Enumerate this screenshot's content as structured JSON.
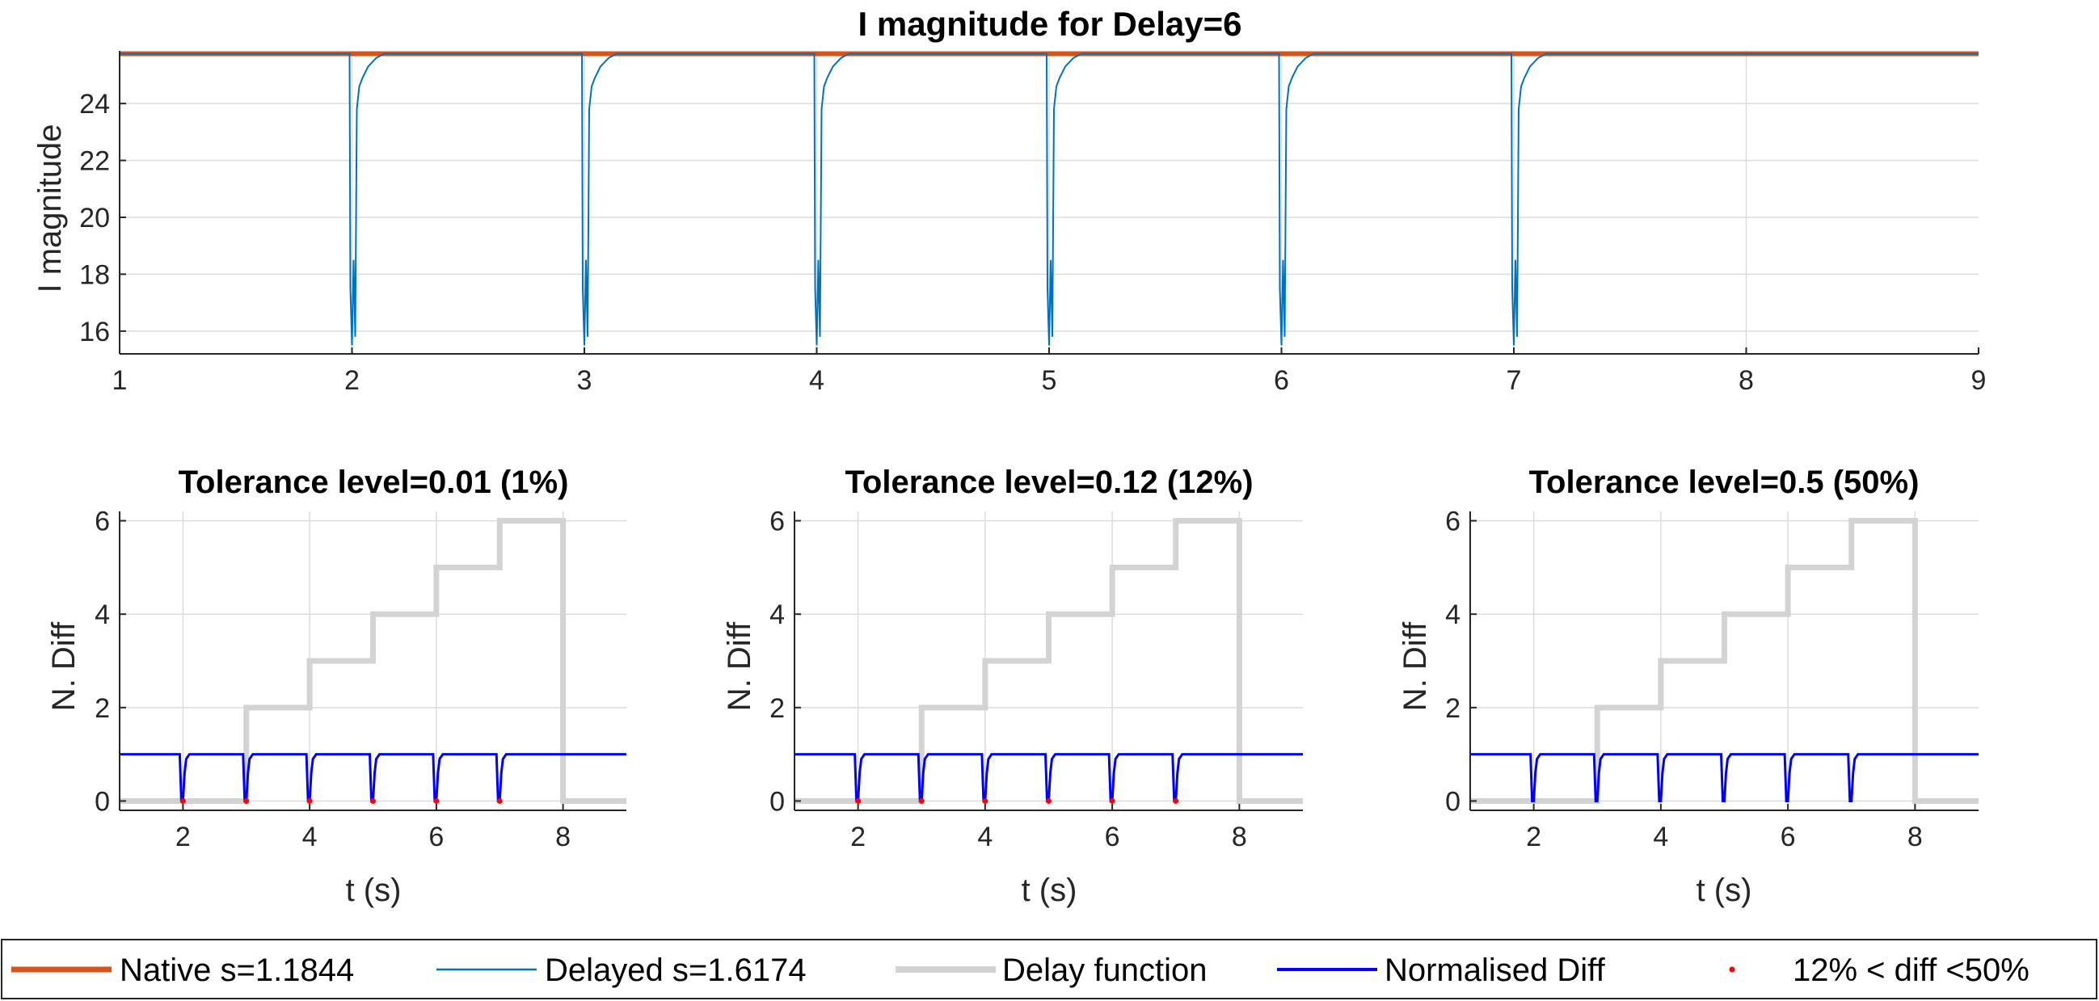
{
  "figure": {
    "legend": {
      "entries": [
        {
          "label": "Native s=1.1844",
          "color": "#D95319",
          "style": "thick-line"
        },
        {
          "label": "Delayed s=1.6174",
          "color": "#0072BD",
          "style": "thin-line"
        },
        {
          "label": "Delay function",
          "color": "#D3D3D3",
          "style": "thick-line"
        },
        {
          "label": "Normalised Diff",
          "color": "#0000FF",
          "style": "line"
        },
        {
          "label": "12% < diff <50%",
          "color": "#FF0000",
          "style": "dot"
        }
      ]
    }
  },
  "chart_data": [
    {
      "type": "line",
      "title": "I magnitude for Delay=6",
      "xlabel": "",
      "ylabel": "I magnitude",
      "xlim": [
        1,
        9
      ],
      "ylim": [
        15.2,
        25.85
      ],
      "x_ticks": [
        1,
        2,
        3,
        4,
        5,
        6,
        7,
        8,
        9
      ],
      "y_ticks": [
        16,
        18,
        20,
        22,
        24
      ],
      "grid": true,
      "series": [
        {
          "name": "Native s=1.1844",
          "color": "#D95319",
          "x": [
            1,
            9
          ],
          "y": [
            25.75,
            25.75
          ]
        },
        {
          "name": "Delayed s=1.6174",
          "color": "#0072BD",
          "dip_times": [
            2,
            3,
            4,
            5,
            6,
            7
          ],
          "baseline": 25.75,
          "dip_min": 15.5
        }
      ]
    },
    {
      "type": "line",
      "title": "Tolerance level=0.01 (1%)",
      "xlabel": "t (s)",
      "ylabel": "N. Diff",
      "xlim": [
        1,
        9
      ],
      "ylim": [
        -0.2,
        6.2
      ],
      "x_ticks": [
        2,
        4,
        6,
        8
      ],
      "y_ticks": [
        0,
        2,
        4,
        6
      ],
      "grid": true,
      "series": [
        {
          "name": "Delay function",
          "color": "#D3D3D3",
          "x": [
            1,
            3,
            3,
            4,
            4,
            5,
            5,
            6,
            6,
            7,
            7,
            8,
            8,
            9
          ],
          "y": [
            0,
            0,
            2,
            2,
            3,
            3,
            4,
            4,
            5,
            5,
            6,
            6,
            0,
            0
          ]
        },
        {
          "name": "Normalised Diff",
          "color": "#0000FF",
          "baseline": 1,
          "dip_times": [
            2,
            3,
            4,
            5,
            6,
            7
          ],
          "dip_min": 0
        },
        {
          "name": "12% < diff <50%",
          "color": "#FF0000",
          "x": [
            2,
            3,
            4,
            5,
            6,
            7
          ],
          "y": [
            0,
            0,
            0,
            0,
            0,
            0
          ]
        }
      ]
    },
    {
      "type": "line",
      "title": "Tolerance level=0.12 (12%)",
      "xlabel": "t (s)",
      "ylabel": "N. Diff",
      "xlim": [
        1,
        9
      ],
      "ylim": [
        -0.2,
        6.2
      ],
      "x_ticks": [
        2,
        4,
        6,
        8
      ],
      "y_ticks": [
        0,
        2,
        4,
        6
      ],
      "grid": true,
      "series": [
        {
          "name": "Delay function",
          "color": "#D3D3D3",
          "x": [
            1,
            3,
            3,
            4,
            4,
            5,
            5,
            6,
            6,
            7,
            7,
            8,
            8,
            9
          ],
          "y": [
            0,
            0,
            2,
            2,
            3,
            3,
            4,
            4,
            5,
            5,
            6,
            6,
            0,
            0
          ]
        },
        {
          "name": "Normalised Diff",
          "color": "#0000FF",
          "baseline": 1,
          "dip_times": [
            2,
            3,
            4,
            5,
            6,
            7
          ],
          "dip_min": 0
        },
        {
          "name": "12% < diff <50%",
          "color": "#FF0000",
          "x": [
            2,
            3,
            4,
            5,
            6,
            7
          ],
          "y": [
            0,
            0,
            0,
            0,
            0,
            0
          ]
        }
      ]
    },
    {
      "type": "line",
      "title": "Tolerance level=0.5 (50%)",
      "xlabel": "t (s)",
      "ylabel": "N. Diff",
      "xlim": [
        1,
        9
      ],
      "ylim": [
        -0.2,
        6.2
      ],
      "x_ticks": [
        2,
        4,
        6,
        8
      ],
      "y_ticks": [
        0,
        2,
        4,
        6
      ],
      "grid": true,
      "series": [
        {
          "name": "Delay function",
          "color": "#D3D3D3",
          "x": [
            1,
            3,
            3,
            4,
            4,
            5,
            5,
            6,
            6,
            7,
            7,
            8,
            8,
            9
          ],
          "y": [
            0,
            0,
            2,
            2,
            3,
            3,
            4,
            4,
            5,
            5,
            6,
            6,
            0,
            0
          ]
        },
        {
          "name": "Normalised Diff",
          "color": "#0000FF",
          "baseline": 1,
          "dip_times": [
            2,
            3,
            4,
            5,
            6,
            7
          ],
          "dip_min": 0
        }
      ]
    }
  ]
}
